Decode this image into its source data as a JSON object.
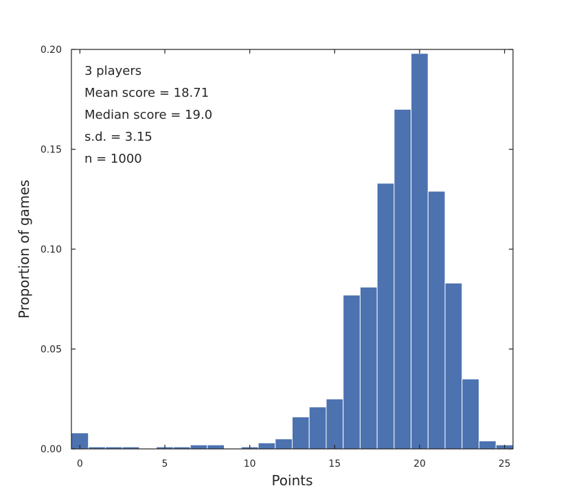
{
  "chart_data": {
    "type": "bar",
    "xlabel": "Points",
    "ylabel": "Proportion of games",
    "xlim": [
      -0.5,
      25.5
    ],
    "ylim": [
      0,
      0.2
    ],
    "xticks": [
      0,
      5,
      10,
      15,
      20,
      25
    ],
    "yticks": [
      0.0,
      0.05,
      0.1,
      0.15,
      0.2
    ],
    "xtick_labels": [
      "0",
      "5",
      "10",
      "15",
      "20",
      "25"
    ],
    "ytick_labels": [
      "0.00",
      "0.05",
      "0.10",
      "0.15",
      "0.20"
    ],
    "annotations": [
      "3 players",
      "Mean score = 18.71",
      "Median score = 19.0",
      "s.d. = 3.15",
      "n = 1000"
    ],
    "categories": [
      0,
      1,
      2,
      3,
      4,
      5,
      6,
      7,
      8,
      9,
      10,
      11,
      12,
      13,
      14,
      15,
      16,
      17,
      18,
      19,
      20,
      21,
      22,
      23,
      24,
      25
    ],
    "values": [
      0.008,
      0.001,
      0.001,
      0.001,
      0.0,
      0.001,
      0.001,
      0.002,
      0.002,
      0.0,
      0.001,
      0.003,
      0.005,
      0.016,
      0.021,
      0.025,
      0.077,
      0.081,
      0.133,
      0.17,
      0.198,
      0.129,
      0.083,
      0.035,
      0.004,
      0.002
    ],
    "bar_color": "#4c72b0",
    "grid": false
  }
}
